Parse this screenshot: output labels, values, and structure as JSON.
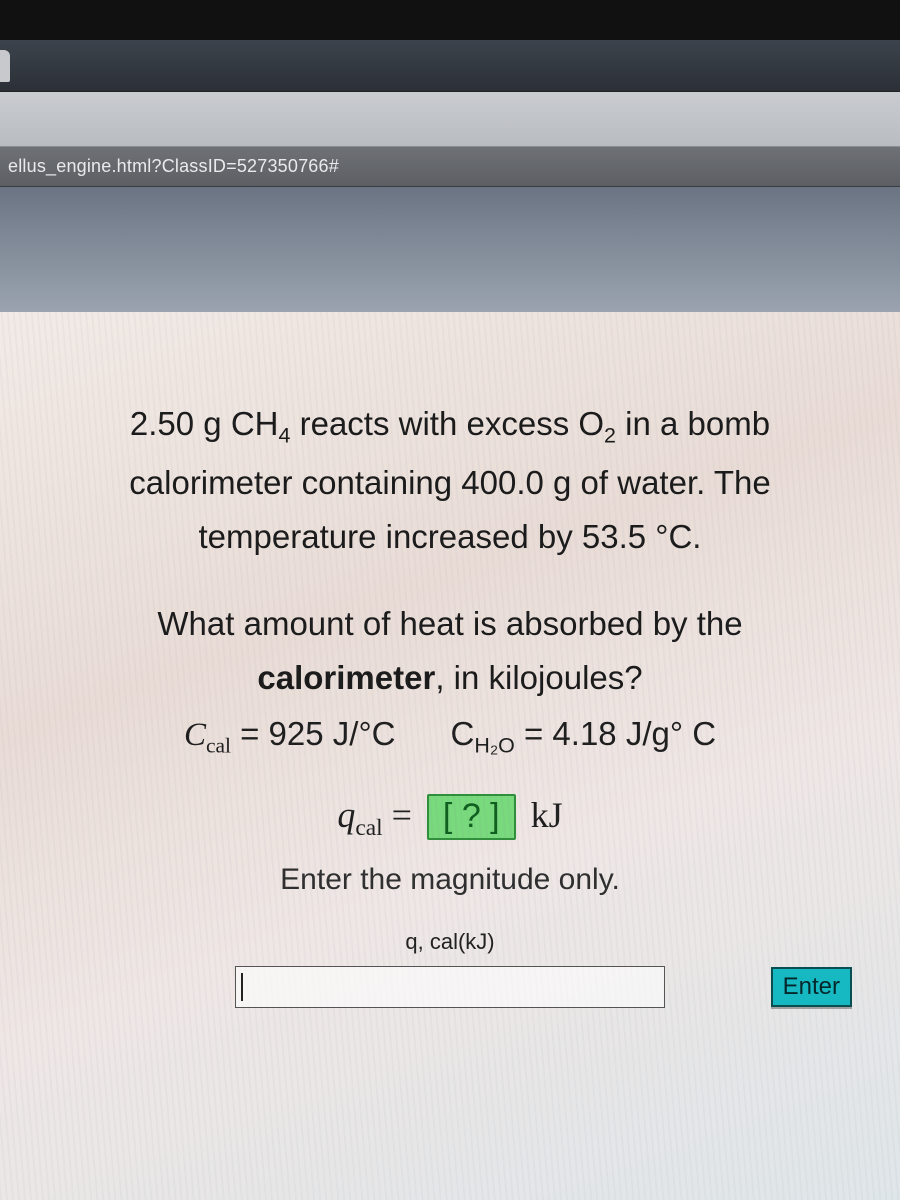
{
  "browser": {
    "address_fragment": "ellus_engine.html?ClassID=527350766#"
  },
  "problem": {
    "p1_pre": "2.50 g CH",
    "p1_sub1": "4",
    "p1_mid": " reacts with excess O",
    "p1_sub2": "2",
    "p1_post": " in a bomb",
    "p2": "calorimeter containing 400.0 g of water. The",
    "p3": "temperature increased by 53.5 °C.",
    "q1": "What amount of heat is absorbed by the",
    "q2_pre": "",
    "q2_bold": "calorimeter",
    "q2_post": ", in kilojoules?"
  },
  "constants": {
    "ccal_sym": "C",
    "ccal_sub": "cal",
    "ccal_eq": " = 925 J/°C",
    "ch2o_pre": "C",
    "ch2o_h2o": "H₂O",
    "ch2o_eq": " = 4.18 J/g° C"
  },
  "equation": {
    "q_sym": "q",
    "q_sub": "cal",
    "equals": " = ",
    "box_text": "[ ? ]",
    "unit": " kJ"
  },
  "hint": "Enter the magnitude only.",
  "input": {
    "label": "q, cal(kJ)",
    "value": "",
    "placeholder": ""
  },
  "buttons": {
    "enter": "Enter"
  },
  "colors": {
    "answer_box_bg": "#79d97d",
    "answer_box_border": "#2f8f3b",
    "enter_bg": "#16b8c2",
    "enter_border": "#0a4e52",
    "panel_bg": "#efe7e5"
  }
}
